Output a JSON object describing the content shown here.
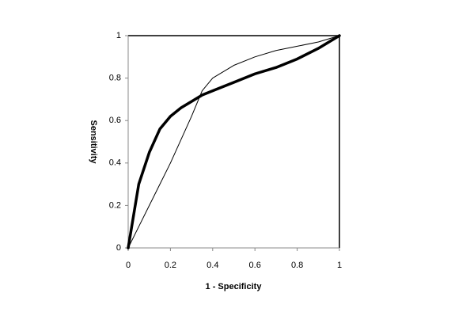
{
  "chart_data": {
    "type": "line",
    "x_label": "1 - Specificity",
    "y_label": "Sensitivity",
    "x": [
      0,
      0.05,
      0.1,
      0.15,
      0.2,
      0.25,
      0.3,
      0.35,
      0.4,
      0.5,
      0.6,
      0.7,
      0.8,
      0.9,
      1
    ],
    "series": [
      {
        "color": "#000000",
        "values": [
          0,
          0.3,
          0.45,
          0.56,
          0.62,
          0.66,
          0.69,
          0.72,
          0.74,
          0.78,
          0.82,
          0.85,
          0.89,
          0.94,
          1
        ]
      },
      {
        "color": "#000000",
        "values": [
          0,
          0.1,
          0.2,
          0.3,
          0.4,
          0.51,
          0.62,
          0.74,
          0.8,
          0.86,
          0.9,
          0.93,
          0.95,
          0.97,
          1
        ]
      }
    ],
    "xlim": [
      0,
      1
    ],
    "ylim": [
      0,
      1
    ],
    "xticks": [
      0,
      0.2,
      0.4,
      0.6,
      0.8,
      1
    ],
    "yticks": [
      0,
      0.2,
      0.4,
      0.6,
      0.8,
      1
    ]
  }
}
